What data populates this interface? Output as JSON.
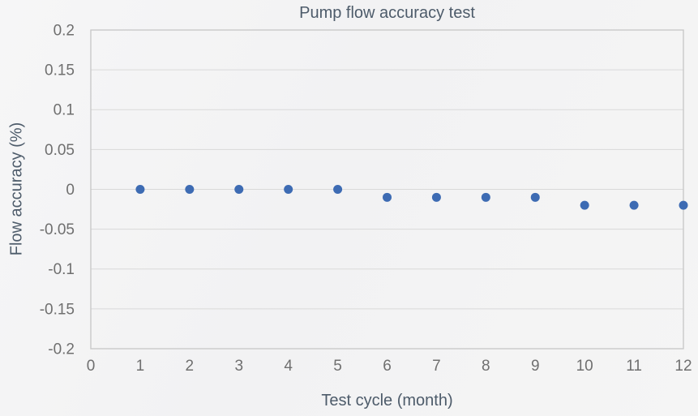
{
  "figure": {
    "background": "#f3f3f4"
  },
  "chart_data": {
    "type": "scatter",
    "title": "Pump flow accuracy test",
    "xlabel": "Test cycle (month)",
    "ylabel": "Flow accuracy (%)",
    "x": [
      1,
      2,
      3,
      4,
      5,
      6,
      7,
      8,
      9,
      10,
      11,
      12
    ],
    "y": [
      0,
      0,
      0,
      0,
      0,
      -0.01,
      -0.01,
      -0.01,
      -0.01,
      -0.02,
      -0.02,
      -0.02
    ],
    "xlim": [
      0,
      12
    ],
    "ylim": [
      -0.2,
      0.2
    ],
    "x_ticks": [
      0,
      1,
      2,
      3,
      4,
      5,
      6,
      7,
      8,
      9,
      10,
      11,
      12
    ],
    "x_tick_labels": [
      "0",
      "1",
      "2",
      "3",
      "4",
      "5",
      "6",
      "7",
      "8",
      "9",
      "10",
      "11",
      "12"
    ],
    "y_ticks": [
      0.2,
      0.15,
      0.1,
      0.05,
      0,
      -0.05,
      -0.1,
      -0.15,
      -0.2
    ],
    "y_tick_labels": [
      "0.2",
      "0.15",
      "0.1",
      "0.05",
      "0",
      "-0.05",
      "-0.1",
      "-0.15",
      "-0.2"
    ],
    "grid": "horizontal",
    "legend": "none",
    "marker_size_px": 11,
    "colors": {
      "marker": "#3d6bb3",
      "grid": "#d9d9d9",
      "plot_border": "#c6c6c6",
      "tick_text": "#6f6f6f",
      "title_text": "#4d5b6a",
      "axis_label_text": "#4d5b6a"
    }
  }
}
